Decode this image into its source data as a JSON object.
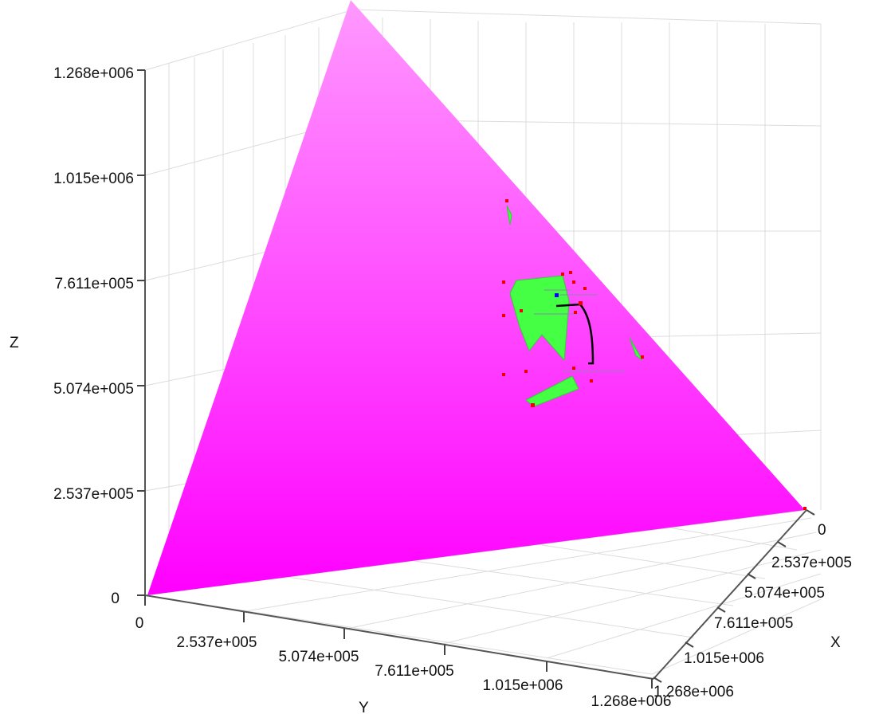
{
  "chart_data": {
    "type": "scatter",
    "title": "",
    "axes": {
      "x": {
        "label": "X",
        "range": [
          0,
          1268000
        ],
        "ticks": [
          "0",
          "2.537e+005",
          "5.074e+005",
          "7.611e+005",
          "1.015e+006",
          "1.268e+006"
        ]
      },
      "y": {
        "label": "Y",
        "range": [
          0,
          1268000
        ],
        "ticks": [
          "0",
          "2.537e+005",
          "5.074e+005",
          "7.611e+005",
          "1.015e+006",
          "1.268e+006"
        ]
      },
      "z": {
        "label": "Z",
        "range": [
          0,
          1268000
        ],
        "ticks": [
          "0",
          "2.537e+005",
          "5.074e+005",
          "7.611e+005",
          "1.015e+006",
          "1.268e+006"
        ]
      }
    },
    "grid": true,
    "colors": {
      "surface_top": "#ff99ff",
      "surface_bottom": "#ff00ff",
      "patches": "#44ff44",
      "points": "#ee0000",
      "path": "#000000",
      "marker": "#0000ff"
    },
    "surface": {
      "name": "",
      "vertices": [
        [
          1268000,
          0,
          0
        ],
        [
          0,
          1268000,
          0
        ],
        [
          0,
          0,
          1268000
        ]
      ]
    }
  }
}
